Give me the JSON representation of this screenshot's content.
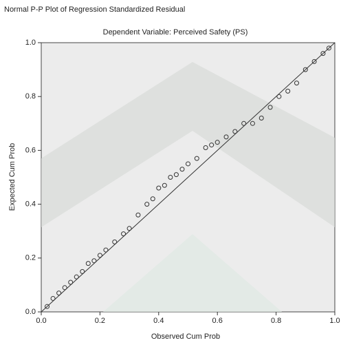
{
  "chart_data": {
    "type": "scatter",
    "title": "Normal P-P Plot of Regression Standardized Residual",
    "subtitle": "Dependent Variable: Perceived Safety (PS)",
    "x_label": "Observed Cum Prob",
    "y_label": "Expected Cum Prob",
    "xlim": [
      0,
      1
    ],
    "ylim": [
      0,
      1
    ],
    "xticks": [
      {
        "value": 0,
        "label": "0.0"
      },
      {
        "value": 0.2,
        "label": "0.2"
      },
      {
        "value": 0.4,
        "label": "0.4"
      },
      {
        "value": 0.6,
        "label": "0.6"
      },
      {
        "value": 0.8,
        "label": "0.8"
      },
      {
        "value": 1,
        "label": "1.0"
      }
    ],
    "yticks": [
      {
        "value": 0,
        "label": "0.0"
      },
      {
        "value": 0.2,
        "label": "0.2"
      },
      {
        "value": 0.4,
        "label": "0.4"
      },
      {
        "value": 0.6,
        "label": "0.6"
      },
      {
        "value": 0.8,
        "label": "0.8"
      },
      {
        "value": 1,
        "label": "1.0"
      }
    ],
    "color": "#333333",
    "x": [
      0.02,
      0.04,
      0.06,
      0.08,
      0.1,
      0.12,
      0.14,
      0.16,
      0.18,
      0.2,
      0.22,
      0.25,
      0.28,
      0.3,
      0.33,
      0.36,
      0.38,
      0.4,
      0.42,
      0.44,
      0.46,
      0.48,
      0.5,
      0.53,
      0.56,
      0.58,
      0.6,
      0.63,
      0.66,
      0.69,
      0.72,
      0.75,
      0.78,
      0.81,
      0.84,
      0.87,
      0.9,
      0.93,
      0.96,
      0.98
    ],
    "y": [
      0.02,
      0.05,
      0.07,
      0.09,
      0.11,
      0.13,
      0.15,
      0.18,
      0.19,
      0.21,
      0.23,
      0.26,
      0.29,
      0.31,
      0.36,
      0.4,
      0.42,
      0.46,
      0.47,
      0.5,
      0.51,
      0.53,
      0.55,
      0.57,
      0.61,
      0.62,
      0.63,
      0.65,
      0.67,
      0.7,
      0.7,
      0.72,
      0.76,
      0.8,
      0.82,
      0.85,
      0.9,
      0.93,
      0.96,
      0.98
    ]
  }
}
